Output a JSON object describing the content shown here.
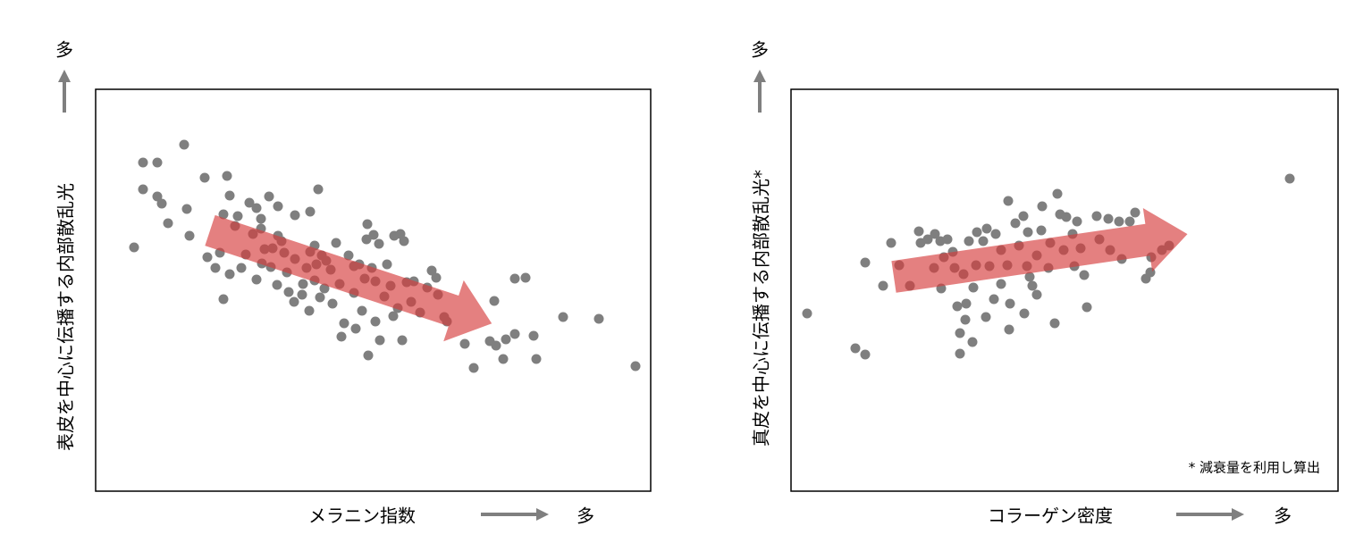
{
  "chart_data": [
    {
      "type": "scatter",
      "x_label": "メラニン指数",
      "x_more": "多",
      "y_label": "表皮を中心に伝播する内部散乱光",
      "y_more": "多",
      "color": "#7f7f7f",
      "xlim": [
        0,
        621
      ],
      "ylim": [
        0,
        450
      ],
      "x": [
        43,
        53,
        69,
        99,
        53,
        69,
        74,
        81,
        102,
        105,
        122,
        147,
        125,
        134,
        143,
        139,
        150,
        150,
        159,
        172,
        180,
        194,
        185,
        204,
        223,
        240,
        249,
        156,
        168,
        176,
        185,
        189,
        180,
        186,
        196,
        204,
        211,
        214,
        203,
        216,
        223,
        232,
        222,
        236,
        240,
        245,
        239,
        247,
        253,
        251,
        256,
        263,
        269,
        265,
        273,
        278,
        283,
        289,
        295,
        298,
        291,
        303,
        304,
        311,
        313,
        313,
        305,
        318,
        323,
        326,
        330,
        334,
        341,
        345,
        343,
        333,
        338,
        348,
        353,
        356,
        363,
        371,
        376,
        381,
        383,
        390,
        393,
        413,
        423,
        441,
        446,
        448,
        456,
        459,
        469,
        481,
        469,
        490,
        493,
        523,
        563,
        604,
        275,
        301,
        289,
        309,
        317,
        245,
        258,
        231,
        208,
        198,
        143,
        163
      ],
      "y": [
        273,
        368,
        368,
        388,
        338,
        330,
        322,
        300,
        316,
        286,
        351,
        353,
        262,
        250,
        215,
        267,
        243,
        331,
        308,
        323,
        317,
        330,
        305,
        319,
        309,
        313,
        338,
        297,
        265,
        288,
        294,
        271,
        237,
        255,
        251,
        286,
        267,
        245,
        231,
        223,
        260,
        232,
        212,
        250,
        268,
        236,
        202,
        254,
        264,
        217,
        227,
        248,
        278,
        210,
        232,
        188,
        264,
        222,
        254,
        202,
        182,
        282,
        299,
        287,
        235,
        190,
        152,
        169,
        218,
        254,
        230,
        286,
        288,
        280,
        169,
        196,
        205,
        234,
        212,
        235,
        200,
        228,
        247,
        239,
        220,
        195,
        190,
        165,
        138,
        168,
        213,
        163,
        148,
        170,
        238,
        239,
        176,
        174,
        148,
        195,
        193,
        140,
        173,
        238,
        252,
        250,
        277,
        275,
        258,
        220,
        280,
        272,
        310,
        250
      ]
    },
    {
      "type": "scatter",
      "x_label": "コラーゲン密度",
      "x_more": "多",
      "y_label": "真皮を中心に伝播する内部散乱光*",
      "y_more": "多",
      "note": "* 減衰量を利用し算出",
      "color": "#7f7f7f",
      "xlim": [
        0,
        612
      ],
      "ylim": [
        0,
        450
      ],
      "x": [
        18,
        72,
        83,
        83,
        103,
        112,
        121,
        133,
        143,
        145,
        153,
        161,
        167,
        160,
        171,
        168,
        175,
        181,
        186,
        189,
        189,
        195,
        196,
        193,
        204,
        203,
        207,
        208,
        199,
        215,
        219,
        218,
        222,
        229,
        227,
        235,
        243,
        242,
        245,
        251,
        255,
        260,
        264,
        265,
        267,
        270,
        244,
        261,
        275,
        280,
        281,
        288,
        298,
        301,
        305,
        308,
        315,
        320,
        317,
        324,
        328,
        331,
        295,
        342,
        355,
        367,
        357,
        370,
        379,
        385,
        397,
        402,
        403,
        415,
        423,
        558,
        345,
        290,
        275,
        235,
        183
      ],
      "y": [
        199,
        160,
        153,
        256,
        230,
        278,
        253,
        230,
        291,
        278,
        282,
        288,
        280,
        250,
        262,
        227,
        282,
        268,
        207,
        177,
        154,
        192,
        210,
        243,
        228,
        167,
        253,
        290,
        280,
        280,
        294,
        195,
        252,
        288,
        215,
        232,
        325,
        253,
        210,
        300,
        275,
        308,
        252,
        290,
        240,
        230,
        181,
        199,
        264,
        292,
        319,
        250,
        333,
        310,
        270,
        307,
        288,
        302,
        252,
        272,
        242,
        206,
        188,
        308,
        305,
        302,
        270,
        260,
        302,
        312,
        238,
        245,
        262,
        270,
        275,
        350,
        282,
        278,
        220,
        270,
        250
      ]
    }
  ]
}
